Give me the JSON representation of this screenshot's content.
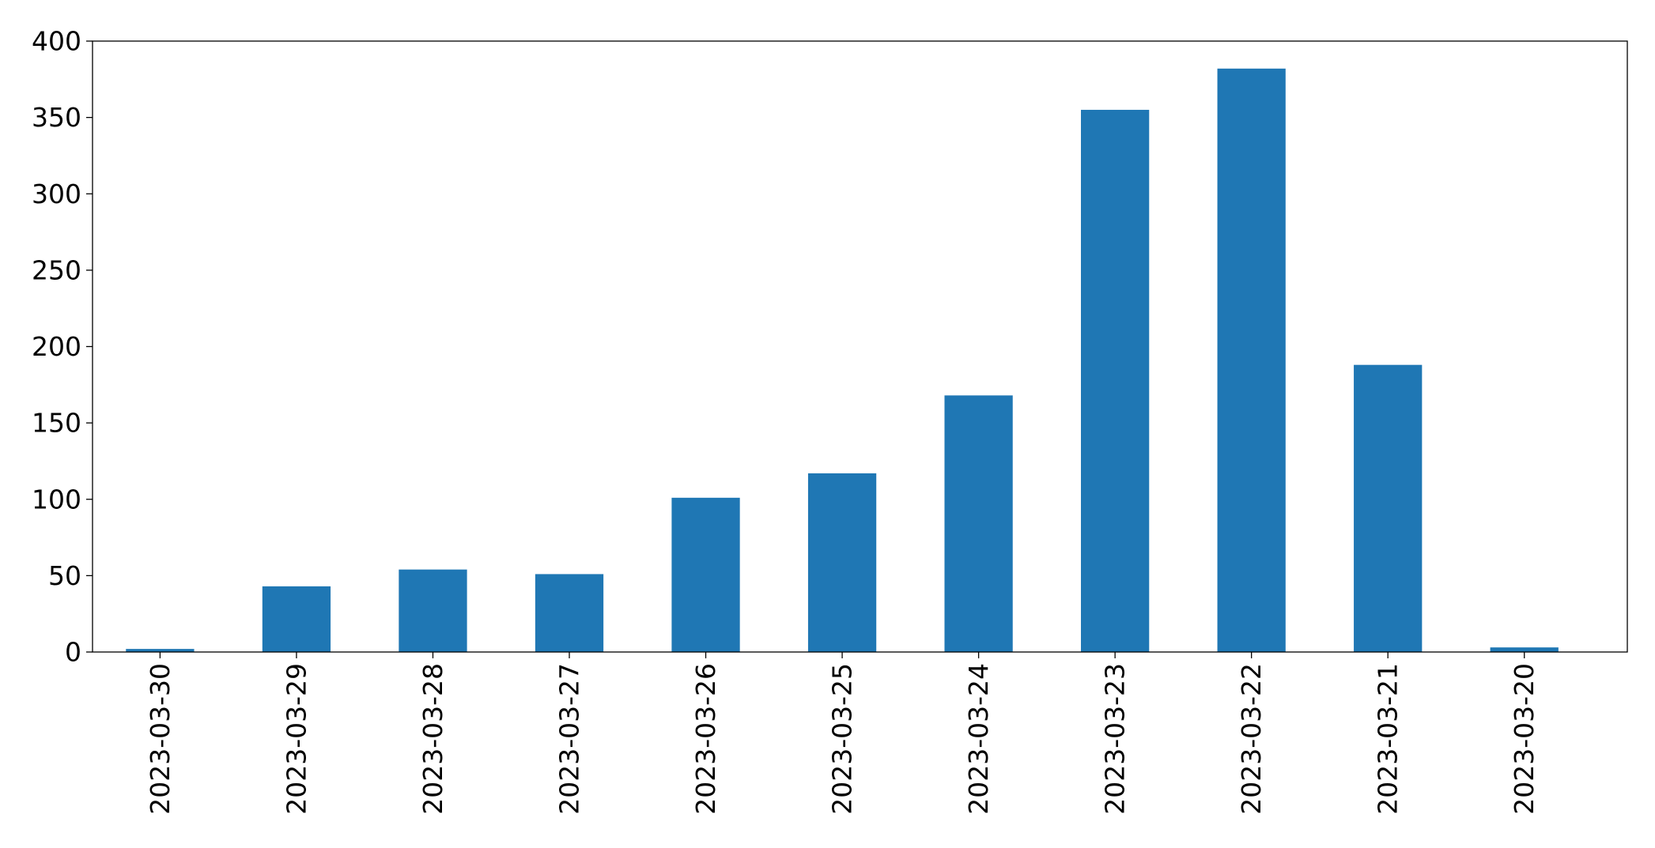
{
  "chart_data": {
    "type": "bar",
    "title": "",
    "xlabel": "",
    "ylabel": "",
    "categories": [
      "2023-03-30",
      "2023-03-29",
      "2023-03-28",
      "2023-03-27",
      "2023-03-26",
      "2023-03-25",
      "2023-03-24",
      "2023-03-23",
      "2023-03-22",
      "2023-03-21",
      "2023-03-20"
    ],
    "values": [
      2,
      43,
      54,
      51,
      101,
      117,
      168,
      355,
      382,
      188,
      3
    ],
    "ylim": [
      0,
      400
    ],
    "yticks": [
      0,
      50,
      100,
      150,
      200,
      250,
      300,
      350,
      400
    ],
    "grid": false,
    "legend": false,
    "bar_color": "#1f77b4",
    "x_tick_rotation": "vertical"
  }
}
